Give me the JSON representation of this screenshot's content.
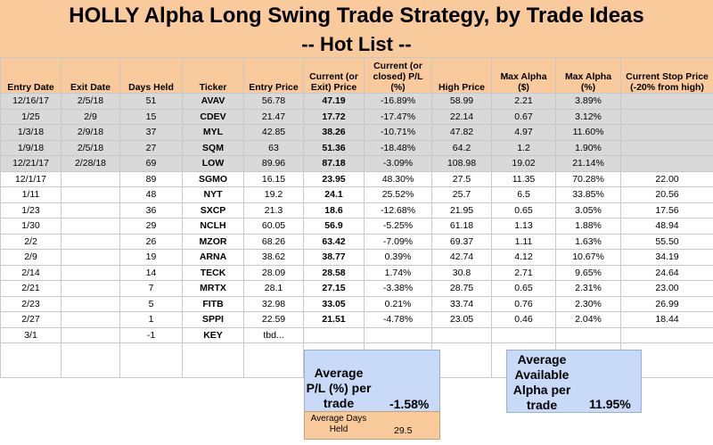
{
  "title": "HOLLY Alpha Long Swing Trade Strategy, by Trade Ideas",
  "subtitle": "-- Hot List --",
  "columns": [
    "Entry Date",
    "Exit Date",
    "Days Held",
    "Ticker",
    "Entry Price",
    "Current (or Exit) Price",
    "Current (or closed) P/L (%)",
    "High Price",
    "Max Alpha ($)",
    "Max Alpha (%)",
    "Current Stop Price (-20% from high)"
  ],
  "closed_trades": [
    [
      "12/16/17",
      "2/5/18",
      "51",
      "AVAV",
      "56.78",
      "47.19",
      "-16.89%",
      "58.99",
      "2.21",
      "3.89%",
      ""
    ],
    [
      "1/25",
      "2/9",
      "15",
      "CDEV",
      "21.47",
      "17.72",
      "-17.47%",
      "22.14",
      "0.67",
      "3.12%",
      ""
    ],
    [
      "1/3/18",
      "2/9/18",
      "37",
      "MYL",
      "42.85",
      "38.26",
      "-10.71%",
      "47.82",
      "4.97",
      "11.60%",
      ""
    ],
    [
      "1/9/18",
      "2/5/18",
      "27",
      "SQM",
      "63",
      "51.36",
      "-18.48%",
      "64.2",
      "1.2",
      "1.90%",
      ""
    ],
    [
      "12/21/17",
      "2/28/18",
      "69",
      "LOW",
      "89.96",
      "87.18",
      "-3.09%",
      "108.98",
      "19.02",
      "21.14%",
      ""
    ]
  ],
  "open_trades": [
    [
      "12/1/17",
      "",
      "89",
      "SGMO",
      "16.15",
      "23.95",
      "48.30%",
      "27.5",
      "11.35",
      "70.28%",
      "22.00"
    ],
    [
      "1/11",
      "",
      "48",
      "NYT",
      "19.2",
      "24.1",
      "25.52%",
      "25.7",
      "6.5",
      "33.85%",
      "20.56"
    ],
    [
      "1/23",
      "",
      "36",
      "SXCP",
      "21.3",
      "18.6",
      "-12.68%",
      "21.95",
      "0.65",
      "3.05%",
      "17.56"
    ],
    [
      "1/30",
      "",
      "29",
      "NCLH",
      "60.05",
      "56.9",
      "-5.25%",
      "61.18",
      "1.13",
      "1.88%",
      "48.94"
    ],
    [
      "2/2",
      "",
      "26",
      "MZOR",
      "68.26",
      "63.42",
      "-7.09%",
      "69.37",
      "1.11",
      "1.63%",
      "55.50"
    ],
    [
      "2/9",
      "",
      "19",
      "ARNA",
      "38.62",
      "38.77",
      "0.39%",
      "42.74",
      "4.12",
      "10.67%",
      "34.19"
    ],
    [
      "2/14",
      "",
      "14",
      "TECK",
      "28.09",
      "28.58",
      "1.74%",
      "30.8",
      "2.71",
      "9.65%",
      "24.64"
    ],
    [
      "2/21",
      "",
      "7",
      "MRTX",
      "28.1",
      "27.15",
      "-3.38%",
      "28.75",
      "0.65",
      "2.31%",
      "23.00"
    ],
    [
      "2/23",
      "",
      "5",
      "FITB",
      "32.98",
      "33.05",
      "0.21%",
      "33.74",
      "0.76",
      "2.30%",
      "26.99"
    ],
    [
      "2/27",
      "",
      "1",
      "SPPI",
      "22.59",
      "21.51",
      "-4.78%",
      "23.05",
      "0.46",
      "2.04%",
      "18.44"
    ],
    [
      "3/1",
      "",
      "-1",
      "KEY",
      "tbd...",
      "",
      "",
      "",
      "",
      "",
      ""
    ]
  ],
  "summary": {
    "avg_pl_label": "Average P/L (%) per trade",
    "avg_pl_value": "-1.58%",
    "avg_alpha_label": "Average Available Alpha per trade",
    "avg_alpha_value": "11.95%",
    "avg_days_label": "Average Days Held",
    "avg_days_value": "29.5"
  },
  "colors": {
    "header_bg": "#f9cb9c",
    "closed_row_bg": "#d9d9d9",
    "summary_bg": "#c9daf8"
  }
}
